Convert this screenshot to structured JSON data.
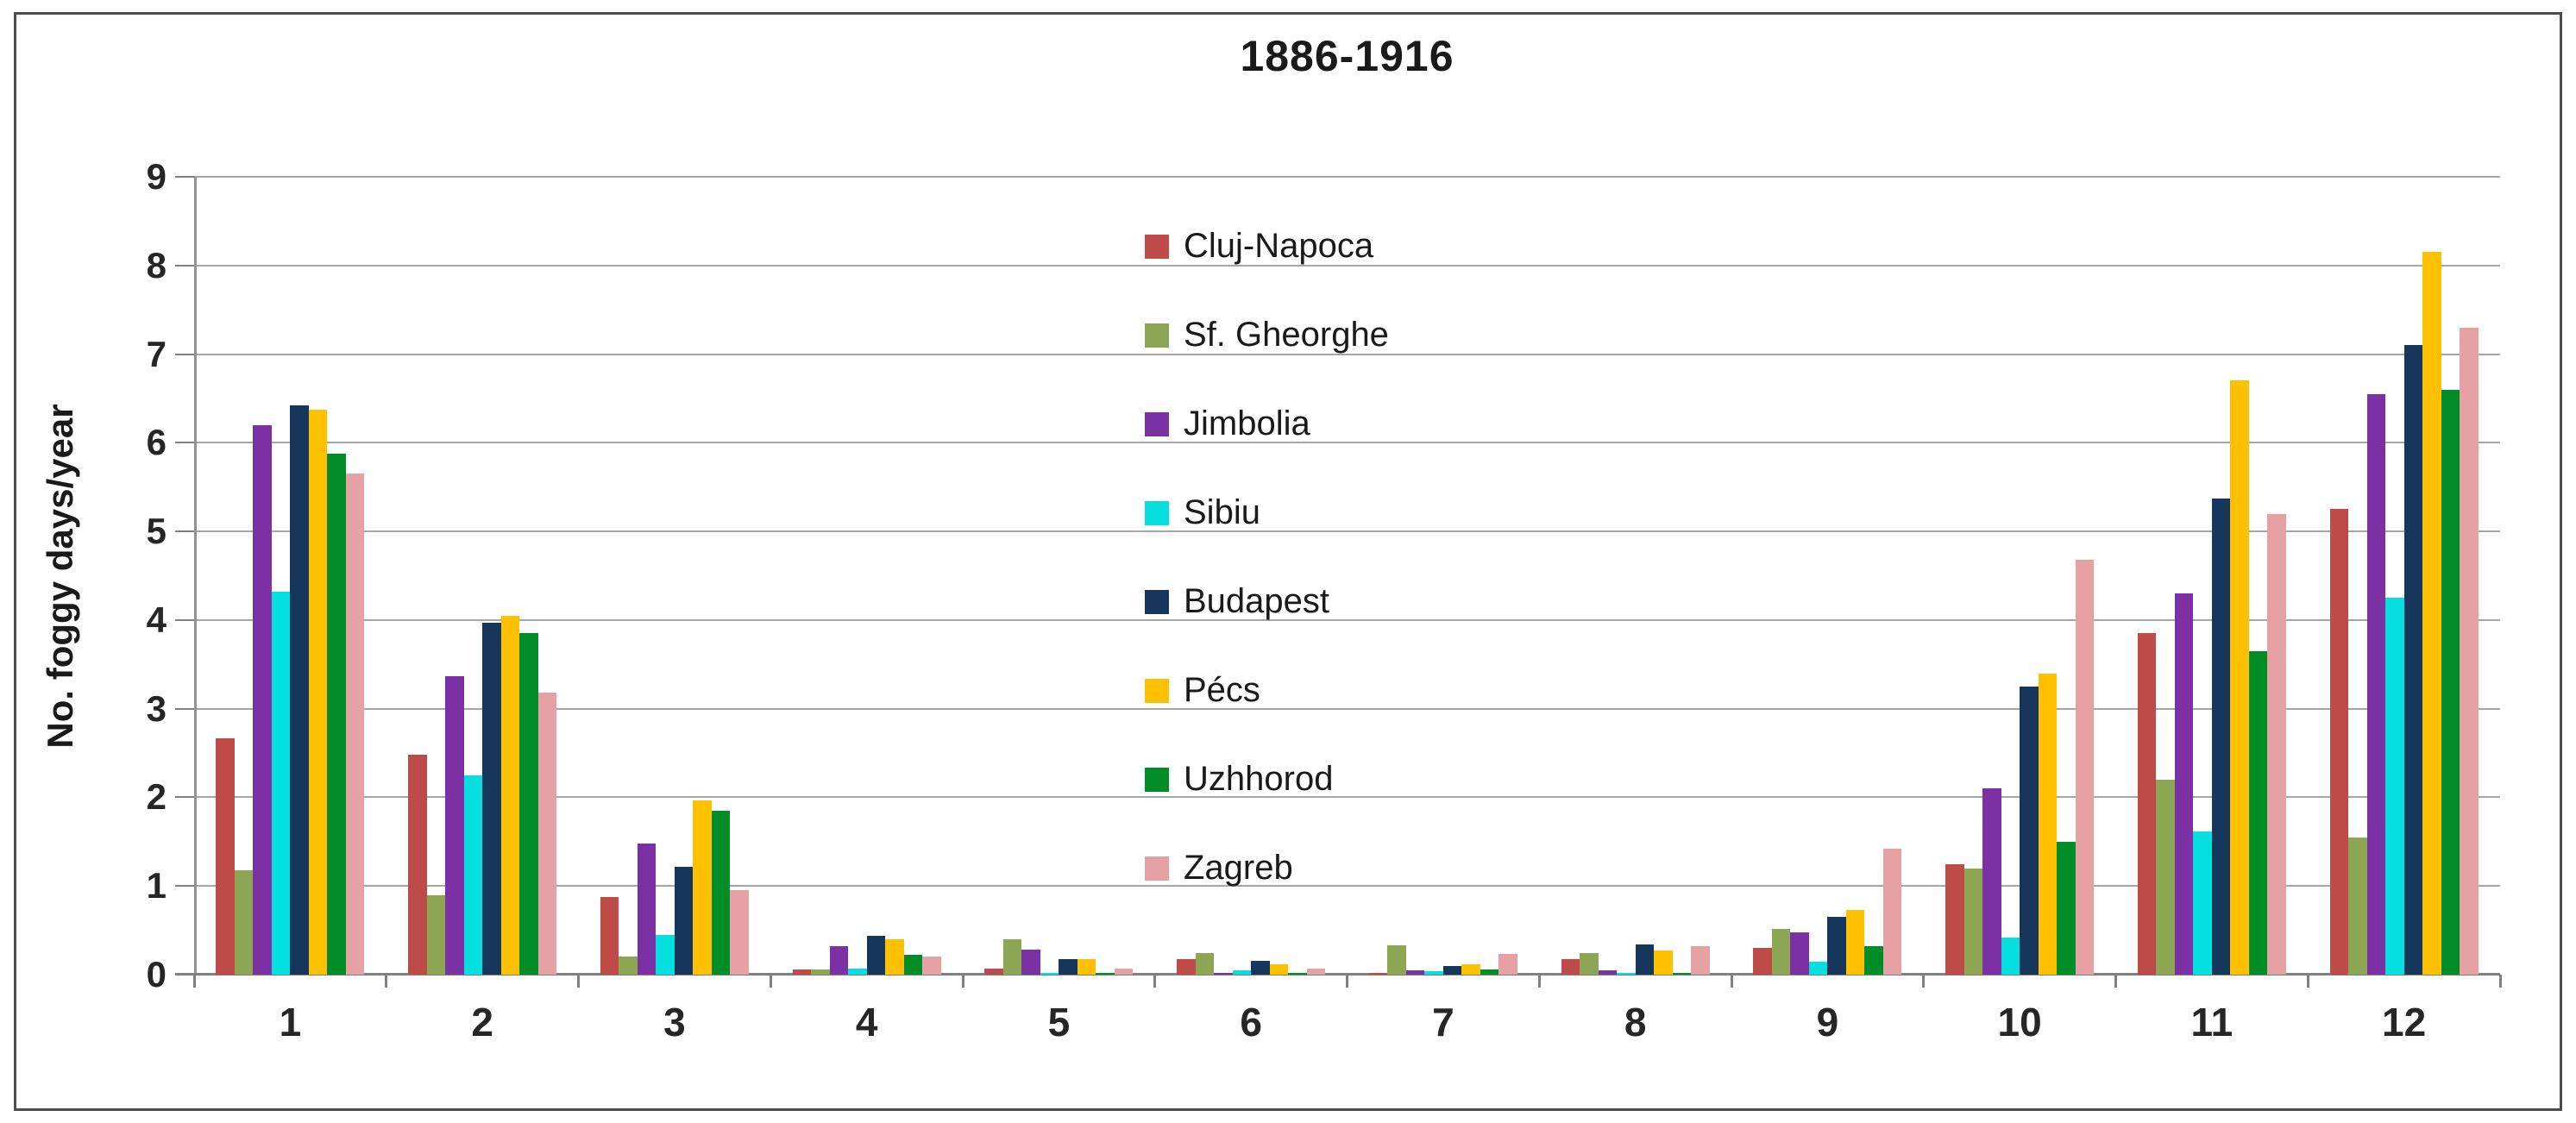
{
  "title": "1886-1916",
  "y_axis_title": "No. foggy days/year",
  "chart_data": {
    "type": "bar",
    "title": "1886-1916",
    "xlabel": "",
    "ylabel": "No. foggy days/year",
    "ylim": [
      0,
      9
    ],
    "ytick_labels": [
      "0",
      "1",
      "2",
      "3",
      "4",
      "5",
      "6",
      "7",
      "8",
      "9"
    ],
    "grid": true,
    "legend_position": "center-top-overlay",
    "categories": [
      "1",
      "2",
      "3",
      "4",
      "5",
      "6",
      "7",
      "8",
      "9",
      "10",
      "11",
      "12"
    ],
    "series": [
      {
        "name": "Cluj-Napoca",
        "color": "#be4b48",
        "values": [
          2.67,
          2.48,
          0.88,
          0.06,
          0.07,
          0.18,
          0.02,
          0.18,
          0.3,
          1.25,
          3.85,
          5.25
        ]
      },
      {
        "name": "Sf. Gheorghe",
        "color": "#8ca653",
        "values": [
          1.18,
          0.9,
          0.2,
          0.06,
          0.4,
          0.24,
          0.33,
          0.24,
          0.52,
          1.2,
          2.2,
          1.55
        ]
      },
      {
        "name": "Jimbolia",
        "color": "#7b31a3",
        "values": [
          6.2,
          3.37,
          1.48,
          0.32,
          0.28,
          0.02,
          0.05,
          0.05,
          0.48,
          2.1,
          4.3,
          6.55
        ]
      },
      {
        "name": "Sibiu",
        "color": "#06dfdf",
        "values": [
          4.32,
          2.25,
          0.45,
          0.07,
          0.02,
          0.05,
          0.04,
          0.02,
          0.15,
          0.42,
          1.62,
          4.25
        ]
      },
      {
        "name": "Budapest",
        "color": "#16365c",
        "values": [
          6.42,
          3.97,
          1.22,
          0.44,
          0.18,
          0.16,
          0.1,
          0.34,
          0.65,
          3.25,
          5.37,
          7.1
        ]
      },
      {
        "name": "Pécs",
        "color": "#ffc000",
        "values": [
          6.37,
          4.05,
          1.97,
          0.4,
          0.18,
          0.12,
          0.12,
          0.27,
          0.73,
          3.4,
          6.7,
          8.15
        ]
      },
      {
        "name": "Uzhhorod",
        "color": "#008d28",
        "values": [
          5.88,
          3.85,
          1.85,
          0.22,
          0.02,
          0.02,
          0.06,
          0.02,
          0.32,
          1.5,
          3.65,
          6.6
        ]
      },
      {
        "name": "Zagreb",
        "color": "#e5a1a3",
        "values": [
          5.65,
          3.18,
          0.95,
          0.2,
          0.07,
          0.07,
          0.23,
          0.32,
          1.42,
          4.68,
          5.2,
          7.3
        ]
      }
    ]
  }
}
